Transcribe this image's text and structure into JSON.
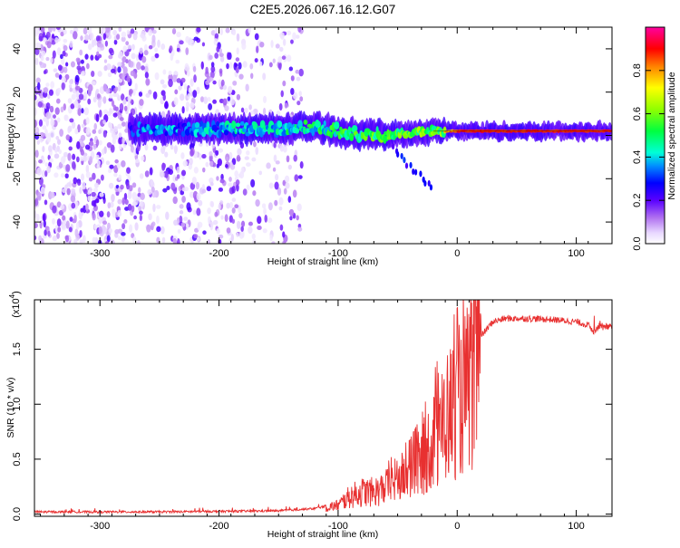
{
  "title": "C2E5.2026.067.16.12.G07",
  "chart_data": [
    {
      "type": "heatmap",
      "name": "spectrogram",
      "xlabel": "Height of straight line (km)",
      "ylabel": "Frequency (Hz)",
      "xlim": [
        -355,
        130
      ],
      "ylim": [
        -50,
        50
      ],
      "xticks": [
        -300,
        -200,
        -100,
        0,
        100
      ],
      "yticks": [
        -40,
        -20,
        0,
        20,
        40
      ],
      "xtick_labels": [
        "-300",
        "-200",
        "-100",
        "0",
        "100"
      ],
      "ytick_labels": [
        "-40",
        "-20",
        "0",
        "20",
        "40"
      ],
      "colorbar": {
        "label": "Normalized spectral amplitude",
        "range": [
          0,
          1
        ],
        "ticks": [
          0.0,
          0.2,
          0.4,
          0.6,
          0.8
        ],
        "tick_labels": [
          "0.0",
          "0.2",
          "0.4",
          "0.6",
          "0.8"
        ],
        "colors": [
          "#ffffff",
          "#c8a8f0",
          "#7a1fe0",
          "#4b00ff",
          "#0000ff",
          "#00aaff",
          "#00ffd0",
          "#00ff40",
          "#a0ff00",
          "#ffff00",
          "#ff8000",
          "#ff0000",
          "#ff00a0"
        ]
      },
      "features": [
        {
          "description": "noise",
          "x_range": [
            -355,
            -130
          ],
          "freq_range": [
            -50,
            50
          ],
          "amplitude": 0.1
        },
        {
          "description": "signal band",
          "x_range": [
            -275,
            130
          ],
          "center_freq": [
            [
              -275,
              3
            ],
            [
              -150,
              3
            ],
            [
              -120,
              4
            ],
            [
              -90,
              1
            ],
            [
              -60,
              0
            ],
            [
              -40,
              1
            ],
            [
              -20,
              2
            ],
            [
              0,
              2
            ],
            [
              130,
              2
            ]
          ],
          "amplitude_start": 0.25,
          "amplitude_end": 0.9
        }
      ]
    },
    {
      "type": "line",
      "name": "snr",
      "xlabel": "Height of straight line (km)",
      "ylabel": "SNR (10 * v/v)",
      "multiplier": "(x10",
      "multiplier_exp": "4",
      "multiplier_close": ")",
      "xlim": [
        -355,
        130
      ],
      "ylim": [
        -0.02,
        1.95
      ],
      "xticks": [
        -300,
        -200,
        -100,
        0,
        100
      ],
      "yticks": [
        0.0,
        0.5,
        1.0,
        1.5
      ],
      "xtick_labels": [
        "-300",
        "-200",
        "-100",
        "0",
        "100"
      ],
      "ytick_labels": [
        "0.0",
        "0.5",
        "1.0",
        "1.5"
      ],
      "color": "#e83030",
      "series_envelope": {
        "x": [
          -355,
          -250,
          -150,
          -120,
          -100,
          -90,
          -80,
          -70,
          -60,
          -50,
          -40,
          -30,
          -20,
          -10,
          0,
          10,
          20,
          30,
          40,
          60,
          80,
          100,
          110,
          115,
          120,
          130
        ],
        "y": [
          0.02,
          0.02,
          0.03,
          0.05,
          0.1,
          0.2,
          0.25,
          0.25,
          0.3,
          0.4,
          0.45,
          0.6,
          0.85,
          1.1,
          1.25,
          1.45,
          1.62,
          1.75,
          1.78,
          1.78,
          1.77,
          1.75,
          1.72,
          1.66,
          1.72,
          1.7
        ]
      }
    }
  ]
}
